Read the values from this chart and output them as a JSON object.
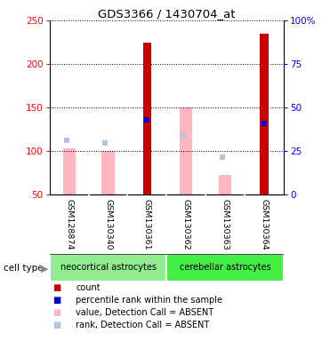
{
  "title": "GDS3366 / 1430704_at",
  "samples": [
    "GSM128874",
    "GSM130340",
    "GSM130361",
    "GSM130362",
    "GSM130363",
    "GSM130364"
  ],
  "cell_types": [
    {
      "label": "neocortical astrocytes",
      "color": "#90ee90",
      "start": 0,
      "end": 3
    },
    {
      "label": "cerebellar astrocytes",
      "color": "#44ee44",
      "start": 3,
      "end": 6
    }
  ],
  "count_values": [
    null,
    null,
    224,
    null,
    null,
    235
  ],
  "percentile_rank_values": [
    null,
    null,
    136,
    null,
    null,
    132
  ],
  "value_absent": [
    103,
    100,
    null,
    150,
    72,
    null
  ],
  "rank_absent": [
    112,
    109,
    null,
    118,
    93,
    null
  ],
  "ylim_left": [
    50,
    250
  ],
  "ylim_right": [
    0,
    100
  ],
  "yticks_left": [
    50,
    100,
    150,
    200,
    250
  ],
  "yticks_right": [
    0,
    25,
    50,
    75,
    100
  ],
  "ytick_labels_right": [
    "0",
    "25",
    "50",
    "75",
    "100%"
  ],
  "color_count": "#cc0000",
  "color_percentile": "#0000cc",
  "color_value_absent": "#ffb6c1",
  "color_rank_absent": "#b0c4de",
  "label_area_bg": "#cccccc",
  "cell_type_label": "cell type",
  "legend_items": [
    {
      "color": "#cc0000",
      "label": "count"
    },
    {
      "color": "#0000cc",
      "label": "percentile rank within the sample"
    },
    {
      "color": "#ffb6c1",
      "label": "value, Detection Call = ABSENT"
    },
    {
      "color": "#b0c4de",
      "label": "rank, Detection Call = ABSENT"
    }
  ]
}
